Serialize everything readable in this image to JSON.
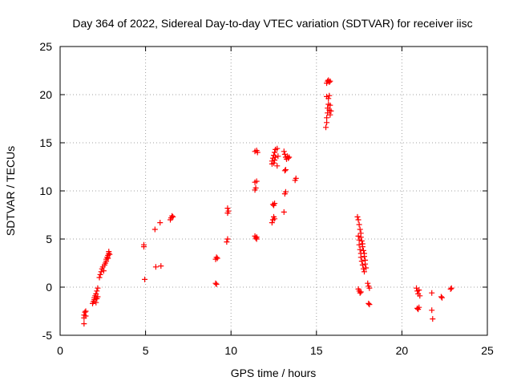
{
  "chart_data": {
    "type": "scatter",
    "title": "Day 364 of 2022, Sidereal Day-to-day VTEC variation (SDTVAR) for receiver iisc",
    "xlabel": "GPS time / hours",
    "ylabel": "SDTVAR / TECUs",
    "xlim": [
      0,
      25
    ],
    "ylim": [
      -5,
      25
    ],
    "xticks": [
      0,
      5,
      10,
      15,
      20,
      25
    ],
    "yticks": [
      -5,
      0,
      5,
      10,
      15,
      20,
      25
    ],
    "grid": true,
    "marker": "+",
    "color": "#ff0000",
    "series": [
      {
        "name": "SDTVAR",
        "points": [
          [
            1.4,
            -3.8
          ],
          [
            1.4,
            -3.2
          ],
          [
            1.4,
            -2.9
          ],
          [
            1.45,
            -2.6
          ],
          [
            1.5,
            -3.0
          ],
          [
            1.5,
            -2.5
          ],
          [
            1.9,
            -1.7
          ],
          [
            1.95,
            -1.5
          ],
          [
            2.0,
            -1.3
          ],
          [
            2.0,
            -1.1
          ],
          [
            2.05,
            -0.9
          ],
          [
            2.1,
            -0.7
          ],
          [
            2.1,
            -1.6
          ],
          [
            2.15,
            -1.2
          ],
          [
            2.15,
            -0.4
          ],
          [
            2.2,
            -0.1
          ],
          [
            2.2,
            -1.0
          ],
          [
            2.3,
            1.0
          ],
          [
            2.35,
            1.3
          ],
          [
            2.4,
            1.6
          ],
          [
            2.45,
            1.9
          ],
          [
            2.5,
            2.1
          ],
          [
            2.55,
            1.7
          ],
          [
            2.6,
            2.3
          ],
          [
            2.65,
            2.5
          ],
          [
            2.7,
            2.7
          ],
          [
            2.7,
            2.9
          ],
          [
            2.75,
            3.1
          ],
          [
            2.8,
            3.3
          ],
          [
            2.8,
            3.0
          ],
          [
            2.85,
            3.5
          ],
          [
            2.85,
            3.7
          ],
          [
            2.9,
            3.4
          ],
          [
            4.9,
            4.4
          ],
          [
            4.9,
            4.2
          ],
          [
            4.95,
            0.8
          ],
          [
            5.55,
            6.0
          ],
          [
            5.6,
            2.1
          ],
          [
            5.85,
            6.7
          ],
          [
            5.9,
            2.2
          ],
          [
            6.45,
            7.0
          ],
          [
            6.5,
            7.2
          ],
          [
            6.55,
            7.4
          ],
          [
            6.6,
            7.3
          ],
          [
            9.1,
            0.4
          ],
          [
            9.15,
            0.3
          ],
          [
            9.1,
            2.9
          ],
          [
            9.15,
            3.1
          ],
          [
            9.2,
            3.0
          ],
          [
            9.75,
            4.7
          ],
          [
            9.8,
            5.0
          ],
          [
            9.8,
            7.7
          ],
          [
            9.8,
            8.2
          ],
          [
            9.85,
            7.9
          ],
          [
            11.4,
            5.3
          ],
          [
            11.45,
            5.1
          ],
          [
            11.5,
            5.2
          ],
          [
            11.5,
            5.0
          ],
          [
            11.4,
            10.1
          ],
          [
            11.45,
            10.3
          ],
          [
            11.4,
            10.9
          ],
          [
            11.5,
            11.0
          ],
          [
            11.4,
            14.1
          ],
          [
            11.5,
            14.2
          ],
          [
            11.55,
            14.0
          ],
          [
            12.4,
            6.7
          ],
          [
            12.45,
            7.0
          ],
          [
            12.5,
            7.3
          ],
          [
            12.55,
            7.1
          ],
          [
            12.45,
            8.6
          ],
          [
            12.5,
            8.5
          ],
          [
            12.55,
            8.7
          ],
          [
            12.4,
            12.8
          ],
          [
            12.4,
            13.1
          ],
          [
            12.45,
            13.4
          ],
          [
            12.5,
            13.7
          ],
          [
            12.5,
            12.9
          ],
          [
            12.55,
            14.0
          ],
          [
            12.55,
            13.2
          ],
          [
            12.6,
            14.3
          ],
          [
            12.6,
            13.5
          ],
          [
            12.7,
            14.4
          ],
          [
            12.75,
            13.6
          ],
          [
            12.7,
            12.6
          ],
          [
            13.1,
            7.8
          ],
          [
            13.15,
            9.7
          ],
          [
            13.2,
            9.9
          ],
          [
            13.15,
            12.1
          ],
          [
            13.1,
            14.1
          ],
          [
            13.15,
            13.8
          ],
          [
            13.2,
            13.5
          ],
          [
            13.25,
            13.3
          ],
          [
            13.3,
            13.6
          ],
          [
            13.35,
            13.4
          ],
          [
            13.4,
            13.5
          ],
          [
            13.2,
            12.2
          ],
          [
            13.75,
            11.1
          ],
          [
            13.8,
            11.3
          ],
          [
            15.55,
            16.6
          ],
          [
            15.6,
            17.1
          ],
          [
            15.6,
            17.6
          ],
          [
            15.65,
            18.1
          ],
          [
            15.65,
            18.6
          ],
          [
            15.7,
            19.0
          ],
          [
            15.7,
            19.6
          ],
          [
            15.75,
            19.9
          ],
          [
            15.75,
            18.4
          ],
          [
            15.8,
            18.9
          ],
          [
            15.8,
            17.9
          ],
          [
            15.85,
            18.3
          ],
          [
            15.6,
            19.8
          ],
          [
            15.6,
            21.2
          ],
          [
            15.65,
            21.4
          ],
          [
            15.7,
            21.5
          ],
          [
            15.75,
            21.3
          ],
          [
            15.8,
            21.4
          ],
          [
            17.4,
            7.3
          ],
          [
            17.45,
            7.0
          ],
          [
            17.5,
            6.5
          ],
          [
            17.55,
            6.0
          ],
          [
            17.6,
            5.6
          ],
          [
            17.6,
            5.2
          ],
          [
            17.65,
            4.8
          ],
          [
            17.7,
            4.5
          ],
          [
            17.7,
            4.2
          ],
          [
            17.75,
            3.8
          ],
          [
            17.8,
            3.5
          ],
          [
            17.8,
            3.2
          ],
          [
            17.85,
            2.8
          ],
          [
            17.85,
            2.4
          ],
          [
            17.9,
            2.0
          ],
          [
            17.45,
            5.3
          ],
          [
            17.5,
            4.9
          ],
          [
            17.5,
            4.4
          ],
          [
            17.55,
            3.9
          ],
          [
            17.6,
            3.5
          ],
          [
            17.6,
            3.1
          ],
          [
            17.65,
            2.7
          ],
          [
            17.7,
            2.3
          ],
          [
            17.75,
            1.9
          ],
          [
            17.8,
            1.6
          ],
          [
            17.45,
            -0.2
          ],
          [
            17.5,
            -0.4
          ],
          [
            17.55,
            -0.6
          ],
          [
            17.6,
            -0.5
          ],
          [
            18.0,
            0.4
          ],
          [
            18.05,
            0.1
          ],
          [
            18.1,
            -0.1
          ],
          [
            18.05,
            -1.7
          ],
          [
            18.1,
            -1.8
          ],
          [
            20.85,
            -0.1
          ],
          [
            20.9,
            -0.4
          ],
          [
            20.95,
            -0.7
          ],
          [
            21.0,
            -0.3
          ],
          [
            21.05,
            -0.9
          ],
          [
            20.9,
            -2.2
          ],
          [
            20.95,
            -2.3
          ],
          [
            21.0,
            -2.1
          ],
          [
            21.75,
            -0.6
          ],
          [
            21.75,
            -2.4
          ],
          [
            21.8,
            -3.3
          ],
          [
            22.3,
            -1.0
          ],
          [
            22.35,
            -1.1
          ],
          [
            22.85,
            -0.2
          ],
          [
            22.9,
            -0.1
          ]
        ]
      }
    ]
  }
}
